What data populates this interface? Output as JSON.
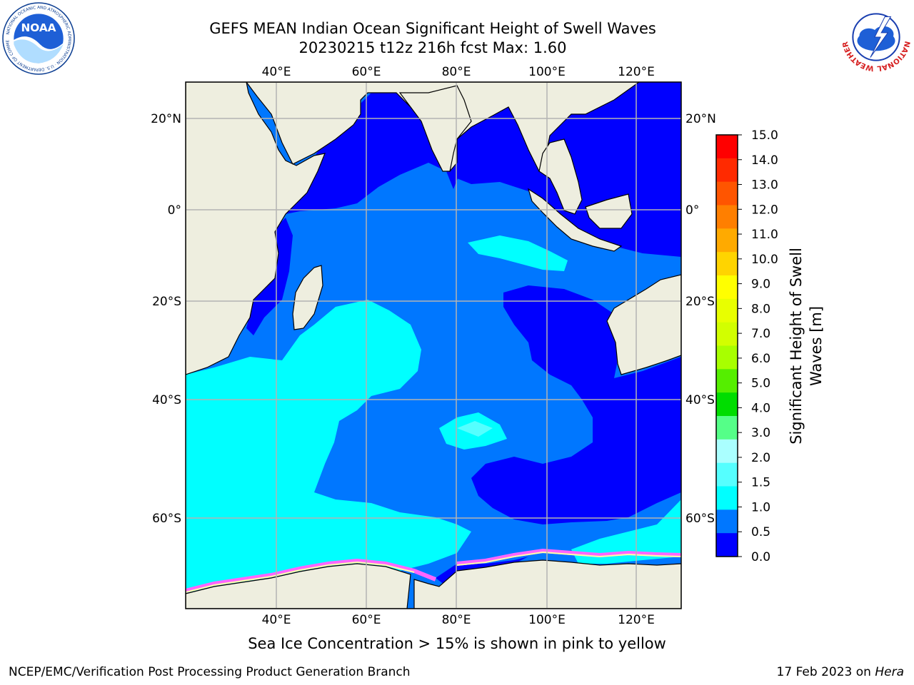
{
  "title_line1": "GEFS MEAN Indian Ocean Significant Height of Swell Waves",
  "title_line2": "20230215 t12z 216h fcst   Max: 1.60",
  "logos": {
    "left": "noaa-logo",
    "right": "nws-logo",
    "left_text": "NOAA",
    "left_ring": "NATIONAL OCEANIC AND ATMOSPHERIC ADMINISTRATION · U.S. DEPARTMENT OF COMMERCE",
    "right_ring": "NATIONAL WEATHER SERVICE"
  },
  "map": {
    "lon_ticks": [
      "40°E",
      "60°E",
      "80°E",
      "100°E",
      "120°E"
    ],
    "lat_ticks": [
      "20°N",
      "0°",
      "20°S",
      "40°S",
      "60°S"
    ],
    "lon_values": [
      40,
      60,
      80,
      100,
      120
    ],
    "lat_values": [
      20,
      0,
      -20,
      -40,
      -60
    ],
    "extent": {
      "lon": [
        20,
        130
      ],
      "lat": [
        -70,
        28
      ]
    },
    "colors": {
      "land": "#eeeedf",
      "grid": "#b4b4b4",
      "band_0_0_5": "#0000ff",
      "band_0_5_1": "#0077ff",
      "band_1_1_5": "#00ffff",
      "band_1_5_2": "#55ffff",
      "ice": "#ff66ff",
      "no_data": "#ffffff"
    }
  },
  "colorbar": {
    "title": "Significant Height of Swell Waves [m]",
    "title_line1": "Significant Height of Swell",
    "title_line2": "Waves [m]",
    "ticks": [
      "15.0",
      "14.0",
      "13.0",
      "12.0",
      "11.0",
      "10.0",
      "9.0",
      "8.0",
      "7.0",
      "6.0",
      "5.0",
      "4.0",
      "3.0",
      "2.0",
      "1.5",
      "1.0",
      "0.5",
      "0.0"
    ],
    "colors": [
      "#ff0000",
      "#ff2a00",
      "#ff5500",
      "#ff7f00",
      "#ffaa00",
      "#ffd400",
      "#ffff00",
      "#e8ff00",
      "#d2ff00",
      "#a8ff00",
      "#55ee00",
      "#00dd00",
      "#55ff88",
      "#aaffff",
      "#55ffff",
      "#00ffff",
      "#0077ff",
      "#0000ff"
    ]
  },
  "caption": "Sea Ice Concentration > 15% is shown in pink to yellow",
  "footer_left": "NCEP/EMC/Verification Post Processing Product Generation Branch",
  "footer_date": "17 Feb 2023 on ",
  "footer_machine": "Hera"
}
